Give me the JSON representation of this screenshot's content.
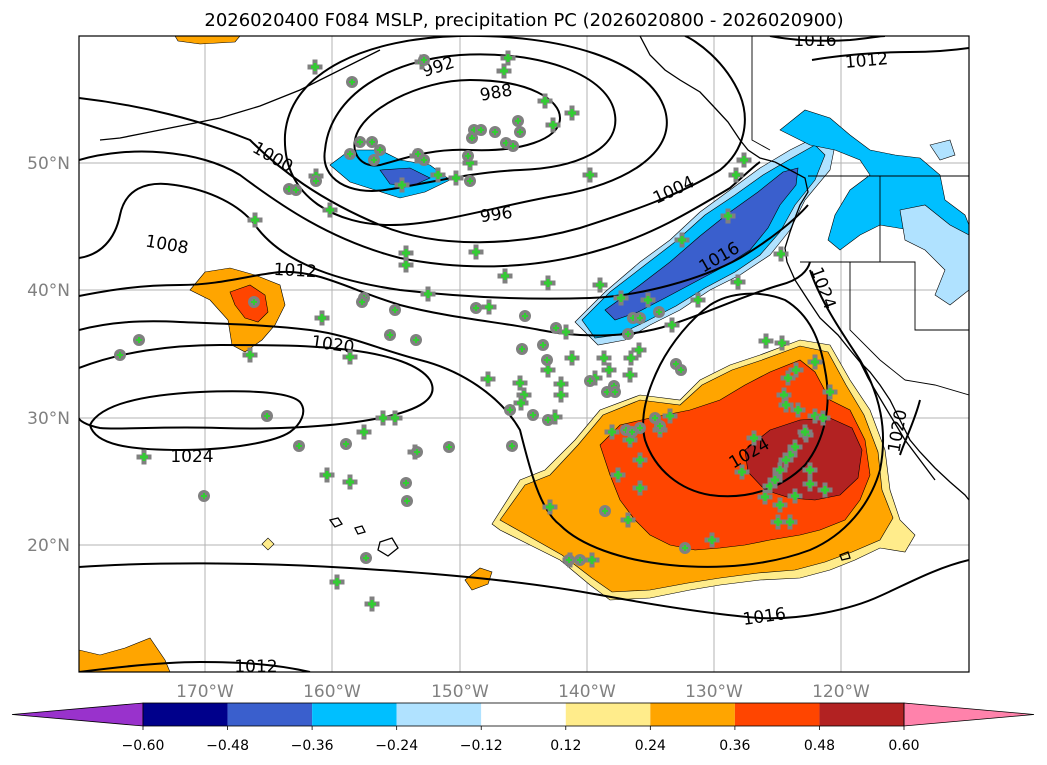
{
  "title": "2026020400 F084 MSLP, precipitation PC (2026020800 - 2026020900)",
  "map": {
    "lat_labels": [
      "50°N",
      "40°N",
      "30°N",
      "20°N"
    ],
    "lon_labels": [
      "170°W",
      "160°W",
      "150°W",
      "140°W",
      "130°W",
      "120°W"
    ],
    "isobar_labels": [
      "992",
      "988",
      "1000",
      "996",
      "1004",
      "1008",
      "1012",
      "1016",
      "1020",
      "1024",
      "1024",
      "1016",
      "1012",
      "1012",
      "1016",
      "1020",
      "1024"
    ],
    "colors": {
      "neg_060": "#9932cc",
      "neg_048": "#00008b",
      "neg_036": "#3a5fcd",
      "neg_024": "#00bfff",
      "neg_012": "#b0e2ff",
      "pos_012": "#ffec8b",
      "pos_024": "#ffa500",
      "pos_036": "#ff4500",
      "pos_048": "#b22222",
      "pos_060": "#ff82ab",
      "station_plus": "#32cd32",
      "station_circle": "#808080"
    }
  },
  "colorbar": {
    "ticks": [
      "−0.60",
      "−0.48",
      "−0.36",
      "−0.24",
      "−0.12",
      "0.12",
      "0.24",
      "0.36",
      "0.48",
      "0.60"
    ],
    "colors": [
      "#9932cc",
      "#00008b",
      "#3a5fcd",
      "#00bfff",
      "#b0e2ff",
      "#ffffff",
      "#ffec8b",
      "#ffa500",
      "#ff4500",
      "#b22222",
      "#ff82ab"
    ]
  }
}
